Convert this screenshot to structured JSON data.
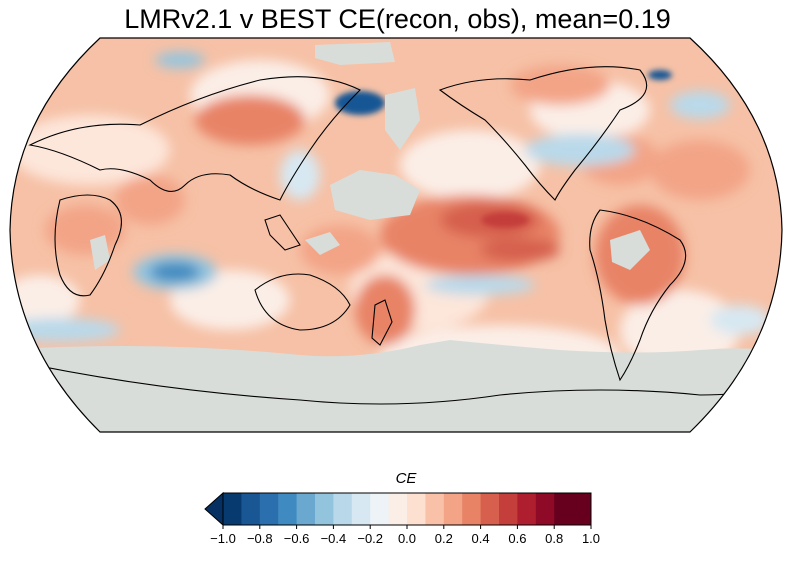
{
  "title": "LMRv2.1 v BEST CE(recon, obs), mean=0.19",
  "colorbar": {
    "label": "CE",
    "extend": "min",
    "ticks": [
      "−1.0",
      "−0.8",
      "−0.6",
      "−0.4",
      "−0.2",
      "0.0",
      "0.2",
      "0.4",
      "0.6",
      "0.8",
      "1.0"
    ],
    "levels": [
      -1.0,
      -0.9,
      -0.8,
      -0.7,
      -0.6,
      -0.5,
      -0.4,
      -0.3,
      -0.2,
      -0.1,
      0.0,
      0.1,
      0.2,
      0.3,
      0.4,
      0.5,
      0.6,
      0.7,
      0.8,
      0.9,
      1.0
    ],
    "colors": [
      "#073a6f",
      "#195694",
      "#2b6fae",
      "#3f8ac0",
      "#6aa8d0",
      "#93c4de",
      "#b9d9ea",
      "#d7e8f2",
      "#edf3f6",
      "#fbeee7",
      "#fde0d0",
      "#f9c2a8",
      "#f3a487",
      "#e88366",
      "#d6604d",
      "#c43e3b",
      "#af1e2f",
      "#8e0a26",
      "#67001f",
      "#67001f"
    ],
    "under_color": "#053061"
  },
  "map": {
    "projection": "Robinson",
    "central_longitude": 180,
    "missing_color": "#d9ddd9",
    "ocean_base_color": "#f6b79a"
  }
}
